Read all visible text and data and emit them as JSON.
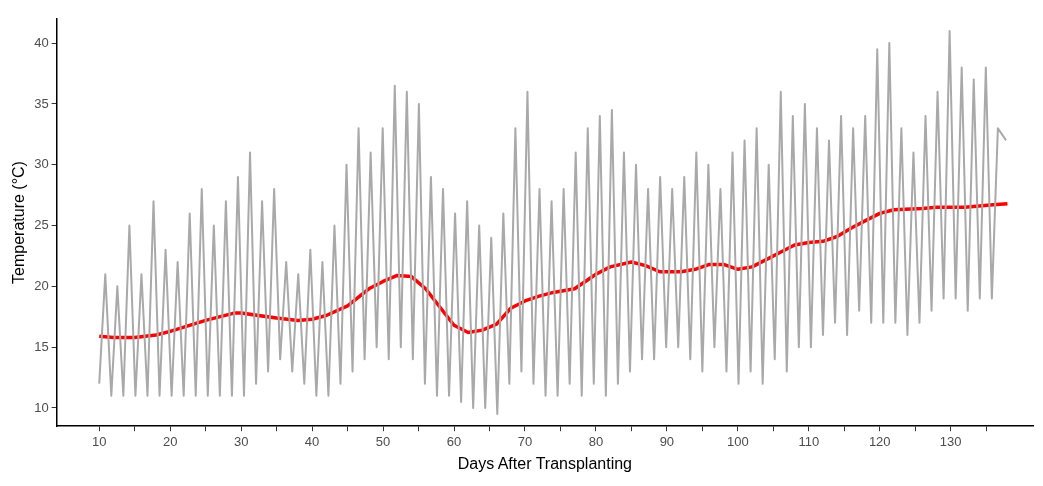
{
  "chart_data": {
    "type": "line",
    "xlabel": "Days After Transplanting",
    "ylabel": "Temperature (°C)",
    "xlim": [
      4,
      141.6
    ],
    "ylim": [
      8.5,
      42
    ],
    "xticks": [
      10,
      {
        "value": 15,
        "label": null
      },
      20,
      {
        "value": 25,
        "label": null
      },
      30,
      {
        "value": 35,
        "label": null
      },
      40,
      {
        "value": 45,
        "label": null
      },
      50,
      {
        "value": 55,
        "label": null
      },
      60,
      {
        "value": 65,
        "label": null
      },
      70,
      {
        "value": 75,
        "label": null
      },
      80,
      {
        "value": 85,
        "label": null
      },
      90,
      {
        "value": 95,
        "label": null
      },
      100,
      {
        "value": 105,
        "label": null
      },
      110,
      {
        "value": 115,
        "label": null
      },
      120,
      {
        "value": 125,
        "label": null
      },
      130,
      {
        "value": 135,
        "label": null
      }
    ],
    "yticks": [
      10,
      15,
      20,
      25,
      30,
      35,
      40
    ],
    "grid": false,
    "legend": false,
    "marker": "none",
    "line_style": "solid",
    "series": [
      {
        "color": "#a9a9a9",
        "x": [
          10,
          10.85,
          11.7,
          12.55,
          13.4,
          14.25,
          15.1,
          15.95,
          16.8,
          17.65,
          18.5,
          19.35,
          20.2,
          21.05,
          21.9,
          22.75,
          23.6,
          24.45,
          25.3,
          26.15,
          27,
          27.85,
          28.7,
          29.55,
          30.4,
          31.25,
          32.1,
          32.95,
          33.8,
          34.65,
          35.5,
          36.35,
          37.2,
          38.05,
          38.9,
          39.75,
          40.6,
          41.45,
          42.3,
          43.15,
          44,
          44.85,
          45.7,
          46.55,
          47.4,
          48.25,
          49.1,
          49.95,
          50.8,
          51.65,
          52.5,
          53.35,
          54.2,
          55.05,
          55.9,
          56.75,
          57.6,
          58.45,
          59.3,
          60.15,
          61,
          61.85,
          62.7,
          63.55,
          64.4,
          65.25,
          66.1,
          66.95,
          67.8,
          68.65,
          69.5,
          70.35,
          71.2,
          72.05,
          72.9,
          73.75,
          74.6,
          75.45,
          76.3,
          77.15,
          78,
          78.85,
          79.7,
          80.55,
          81.4,
          82.25,
          83.1,
          83.95,
          84.8,
          85.65,
          86.5,
          87.35,
          88.2,
          89.05,
          89.9,
          90.75,
          91.6,
          92.45,
          93.3,
          94.15,
          95,
          95.85,
          96.7,
          97.55,
          98.4,
          99.25,
          100.1,
          100.95,
          101.8,
          102.65,
          103.5,
          104.35,
          105.2,
          106.05,
          106.9,
          107.75,
          108.6,
          109.45,
          110.3,
          111.15,
          112,
          112.85,
          113.7,
          114.55,
          115.4,
          116.25,
          117.1,
          117.95,
          118.8,
          119.65,
          120.5,
          121.35,
          122.2,
          123.05,
          123.9,
          124.75,
          125.6,
          126.45,
          127.3,
          128.15,
          129,
          129.85,
          130.7,
          131.55,
          132.4,
          133.25,
          134.1,
          134.95,
          135.8,
          136.65,
          137.8
        ],
        "values": [
          12,
          21,
          11,
          20,
          11,
          25,
          11,
          21,
          11,
          27,
          11,
          23,
          11,
          22,
          11,
          26,
          11,
          28,
          11,
          25,
          11,
          27,
          11,
          29,
          11,
          31,
          12,
          27,
          13,
          28,
          14,
          22,
          13,
          21,
          12,
          23,
          11,
          22,
          11,
          25,
          12,
          30,
          13,
          33,
          14,
          31,
          15,
          33,
          14,
          36.5,
          15,
          36,
          14,
          35,
          12,
          29,
          11,
          28,
          11,
          26,
          10.5,
          27,
          10,
          25,
          10,
          24,
          9.5,
          26,
          12,
          33,
          13,
          36,
          12,
          28,
          11,
          27,
          11,
          28,
          12,
          31,
          11,
          33,
          12,
          34,
          11,
          34.5,
          12,
          31,
          13,
          30,
          14,
          28,
          14,
          29,
          15,
          28,
          15,
          29,
          14,
          31,
          13,
          30,
          15,
          28,
          13,
          31,
          12,
          32,
          13,
          33,
          12,
          30,
          14,
          36,
          13,
          34,
          15,
          35,
          15,
          33,
          16,
          32,
          17,
          34,
          16,
          33,
          18,
          34,
          17,
          39.5,
          17,
          40,
          17,
          33,
          16,
          31,
          17,
          34,
          18,
          36,
          19,
          41,
          19,
          38,
          18,
          37,
          19,
          38,
          19,
          33,
          32
        ]
      },
      {
        "color": "#ff0000",
        "x": [
          10,
          12,
          15,
          18,
          20,
          25,
          29,
          30,
          35,
          38,
          40,
          42,
          45,
          48,
          50,
          52,
          54,
          56,
          58,
          60,
          62,
          64,
          66,
          68,
          70,
          72,
          74,
          77,
          80,
          82,
          85,
          87,
          89,
          92,
          94,
          96,
          98,
          100,
          102,
          104,
          106,
          108,
          110,
          112,
          114,
          116,
          118,
          120,
          122,
          126,
          128,
          132,
          136,
          138
        ],
        "values": [
          15.9,
          15.8,
          15.8,
          16,
          16.3,
          17.2,
          17.8,
          17.8,
          17.4,
          17.2,
          17.3,
          17.6,
          18.4,
          19.8,
          20.4,
          20.9,
          20.8,
          19.8,
          18.3,
          16.8,
          16.2,
          16.4,
          16.9,
          18.2,
          18.8,
          19.2,
          19.5,
          19.8,
          21,
          21.6,
          22,
          21.7,
          21.2,
          21.2,
          21.4,
          21.8,
          21.8,
          21.4,
          21.6,
          22.2,
          22.8,
          23.4,
          23.6,
          23.7,
          24.1,
          24.8,
          25.4,
          26,
          26.3,
          26.4,
          26.5,
          26.5,
          26.7,
          26.8
        ]
      }
    ]
  }
}
